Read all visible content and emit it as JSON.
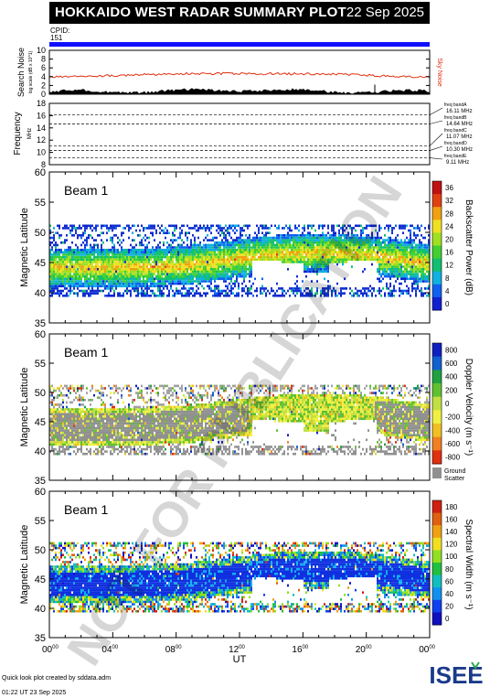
{
  "header": {
    "title": "HOKKAIDO WEST RADAR SUMMARY PLOT",
    "date": "22 Sep 2025"
  },
  "cpid": {
    "label": "CPID:",
    "value": "151"
  },
  "footer": {
    "credit": "Quick look plot created by sddata.adm",
    "timestamp": "01:22 UT 23 Sep 2025"
  },
  "logo": {
    "text": "ISEE"
  },
  "watermark": "NOT FOR PUBLICATION",
  "colors": {
    "noise_line": "#e03010",
    "search_noise": "#000000",
    "cpid_bar": "#1010ff"
  },
  "chart_data": [
    {
      "type": "line",
      "name": "noise",
      "ylabel": "Search Noise",
      "ylabel_sub": "log scale (dB x 10^1)",
      "right_label": "Sky Noise",
      "ylim": [
        0,
        10
      ],
      "yticks": [
        "0",
        "2",
        "4",
        "6",
        "8",
        "10"
      ],
      "sky_noise_level": 3.8,
      "search_noise_level": 0.6
    },
    {
      "type": "line",
      "name": "frequency",
      "ylabel": "Frequency",
      "yunit": "MHz",
      "ylim": [
        8,
        18
      ],
      "yticks": [
        "8",
        "10",
        "12",
        "14",
        "16",
        "18"
      ],
      "bands": [
        {
          "label": "freq bandA",
          "value": "16.11 MHz",
          "freq": 16.11
        },
        {
          "label": "freq bandB",
          "value": "14.64 MHz",
          "freq": 14.64
        },
        {
          "label": "freq bandC",
          "value": "11.07 MHz",
          "freq": 11.07
        },
        {
          "label": "freq bandD",
          "value": "10.30 MHz",
          "freq": 10.3
        },
        {
          "label": "freq bandE",
          "value": "9.11 MHz",
          "freq": 9.11
        }
      ]
    },
    {
      "type": "heatmap",
      "name": "power",
      "beam": "Beam 1",
      "ylabel": "Magnetic Latitude",
      "ylim": [
        35,
        60
      ],
      "yticks": [
        "35",
        "40",
        "45",
        "50",
        "55",
        "60"
      ],
      "colorbar_label": "Backscatter Power (dB)",
      "colorbar_ticks": [
        "0",
        "4",
        "8",
        "12",
        "16",
        "20",
        "24",
        "28",
        "32",
        "36"
      ]
    },
    {
      "type": "heatmap",
      "name": "velocity",
      "beam": "Beam 1",
      "ylabel": "Magnetic Latitude",
      "ylim": [
        35,
        60
      ],
      "yticks": [
        "35",
        "40",
        "45",
        "50",
        "55",
        "60"
      ],
      "colorbar_label": "Doppler Velocity (m s⁻¹)",
      "colorbar_ticks": [
        "800",
        "600",
        "400",
        "200",
        "0",
        "-200",
        "-400",
        "-600",
        "-800"
      ],
      "ground_scatter_label": [
        "Ground",
        "Scatter"
      ]
    },
    {
      "type": "heatmap",
      "name": "width",
      "beam": "Beam 1",
      "ylabel": "Magnetic Latitude",
      "ylim": [
        35,
        60
      ],
      "yticks": [
        "35",
        "40",
        "45",
        "50",
        "55",
        "60"
      ],
      "colorbar_label": "Spectral Width (m s⁻¹)",
      "colorbar_ticks": [
        "0",
        "20",
        "40",
        "60",
        "80",
        "100",
        "120",
        "140",
        "160",
        "180"
      ]
    }
  ],
  "xaxis": {
    "label": "UT",
    "ticks": [
      {
        "h": "00",
        "m": "00"
      },
      {
        "h": "04",
        "m": "00"
      },
      {
        "h": "08",
        "m": "00"
      },
      {
        "h": "12",
        "m": "00"
      },
      {
        "h": "16",
        "m": "00"
      },
      {
        "h": "20",
        "m": "00"
      },
      {
        "h": "00",
        "m": "00"
      }
    ]
  }
}
